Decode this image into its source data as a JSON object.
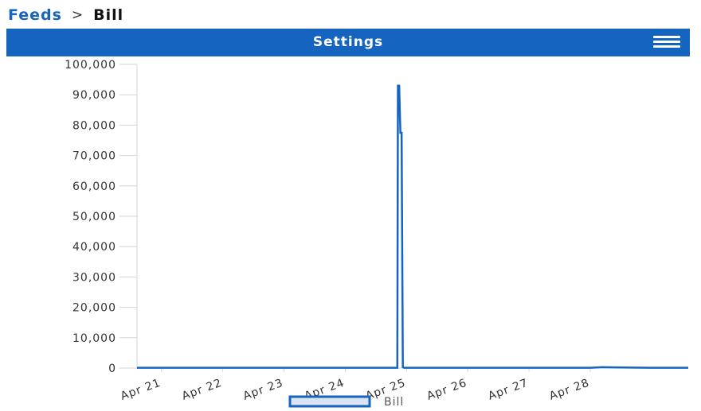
{
  "breadcrumb": {
    "parent": "Feeds",
    "separator": ">",
    "current": "Bill"
  },
  "appbar": {
    "title": "Settings",
    "menu_icon": "hamburger-menu-icon"
  },
  "colors": {
    "primary": "#1565c0",
    "series": "#1565c0",
    "axis": "#d6d6d6"
  },
  "chart_data": {
    "type": "line",
    "title": "",
    "xlabel": "",
    "ylabel": "",
    "ylim": [
      0,
      100000
    ],
    "yticks": [
      "100,000",
      "90,000",
      "80,000",
      "70,000",
      "60,000",
      "50,000",
      "40,000",
      "30,000",
      "20,000",
      "10,000",
      "0"
    ],
    "yticks_values": [
      100000,
      90000,
      80000,
      70000,
      60000,
      50000,
      40000,
      30000,
      20000,
      10000,
      0
    ],
    "xticks": [
      "Apr 21",
      "Apr 22",
      "Apr 23",
      "Apr 24",
      "Apr 25",
      "Apr 26",
      "Apr 27",
      "Apr 28"
    ],
    "xlim": [
      20.6,
      29.6
    ],
    "grid": false,
    "legend_position": "bottom",
    "series": [
      {
        "name": "Bill",
        "x": [
          20.6,
          21.0,
          22.0,
          23.0,
          24.0,
          24.85,
          24.86,
          24.88,
          24.9,
          24.92,
          24.94,
          24.96,
          25.0,
          26.0,
          27.0,
          28.0,
          28.2,
          28.5,
          29.0,
          29.6
        ],
        "y": [
          100,
          100,
          100,
          100,
          100,
          100,
          93000,
          93000,
          77500,
          77500,
          300,
          100,
          100,
          100,
          100,
          100,
          300,
          200,
          100,
          100
        ]
      }
    ]
  }
}
